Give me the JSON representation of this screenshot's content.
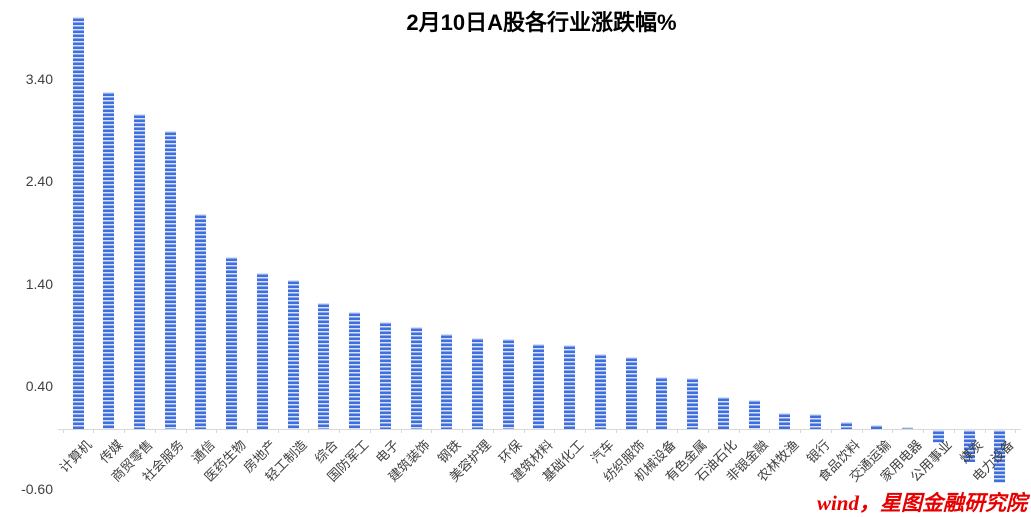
{
  "chart": {
    "title": "2月10日A股各行业涨跌幅%",
    "watermark": "wind，星图金融研究院"
  },
  "chart_data": {
    "type": "bar",
    "title": "2月10日A股各行业涨跌幅%",
    "categories": [
      "计算机",
      "传媒",
      "商贸零售",
      "社会服务",
      "通信",
      "医药生物",
      "房地产",
      "轻工制造",
      "综合",
      "国防军工",
      "电子",
      "建筑装饰",
      "钢铁",
      "美容护理",
      "环保",
      "建筑材料",
      "基础化工",
      "汽车",
      "纺织服饰",
      "机械设备",
      "有色金属",
      "石油石化",
      "非银金融",
      "农林牧渔",
      "银行",
      "食品饮料",
      "交通运输",
      "家用电器",
      "公用事业",
      "煤炭",
      "电力设备"
    ],
    "values": [
      4.02,
      3.29,
      3.07,
      2.91,
      2.1,
      1.68,
      1.52,
      1.45,
      1.23,
      1.14,
      1.04,
      1.0,
      0.93,
      0.89,
      0.88,
      0.83,
      0.82,
      0.73,
      0.7,
      0.51,
      0.5,
      0.31,
      0.28,
      0.16,
      0.15,
      0.07,
      0.04,
      0.02,
      -0.13,
      -0.31,
      -0.52
    ],
    "xlabel": "",
    "ylabel": "",
    "ylim": [
      -0.6,
      4.4
    ],
    "y_ticks": [
      3.4,
      2.4,
      1.4,
      0.4,
      -0.6
    ],
    "y_tick_labels": [
      "3.40",
      "2.40",
      "1.40",
      "0.40",
      "-0.60"
    ],
    "grid": false,
    "legend": false,
    "bar_color": "#3f6ede",
    "bar_stripe_color": "#d8e2f7",
    "axis_color": "#d9d9d9",
    "label_color": "#404040",
    "title_color": "#000000",
    "watermark_color": "#e60000"
  }
}
